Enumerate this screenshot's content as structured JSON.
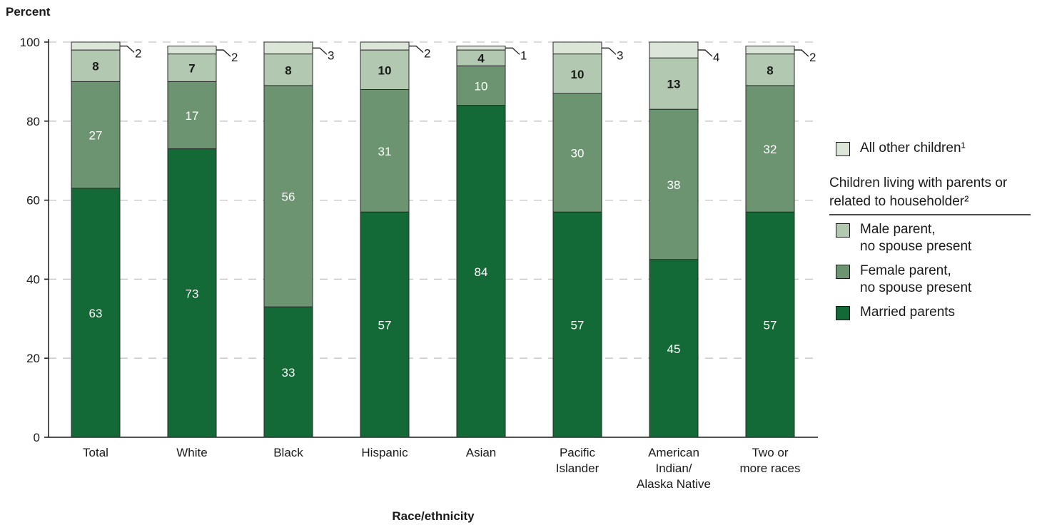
{
  "chart_data": {
    "type": "bar",
    "stacked": true,
    "ylabel": "Percent",
    "xlabel": "Race/ethnicity",
    "ylim": [
      0,
      100
    ],
    "yticks": [
      0,
      20,
      40,
      60,
      80,
      100
    ],
    "grid": true,
    "categories": [
      [
        "Total"
      ],
      [
        "White"
      ],
      [
        "Black"
      ],
      [
        "Hispanic"
      ],
      [
        "Asian"
      ],
      [
        "Pacific",
        "Islander"
      ],
      [
        "American",
        "Indian/",
        "Alaska Native"
      ],
      [
        "Two or",
        "more races"
      ]
    ],
    "series": [
      {
        "name": "Married parents",
        "color": "#136a36",
        "label_color": "#ffffff",
        "values": [
          63,
          73,
          33,
          57,
          84,
          57,
          45,
          57
        ]
      },
      {
        "name": "Female parent,\nno spouse present",
        "color": "#6c9470",
        "label_color": "#ffffff",
        "values": [
          27,
          17,
          56,
          31,
          10,
          30,
          38,
          32
        ]
      },
      {
        "name": "Male parent,\nno spouse present",
        "color": "#b3c8b1",
        "label_color": "#1a1a1a",
        "values": [
          8,
          7,
          8,
          10,
          4,
          10,
          13,
          8
        ]
      },
      {
        "name": "All other children¹",
        "color": "#dbe6d9",
        "label_color": "#1a1a1a",
        "values": [
          2,
          2,
          3,
          2,
          1,
          3,
          4,
          2
        ]
      }
    ],
    "legend_position": "right"
  },
  "legend": {
    "all_other": "All other children¹",
    "group_heading": "Children living with parents or related to householder²",
    "male": "Male parent,\nno spouse present",
    "female": "Female parent,\nno spouse present",
    "married": "Married parents"
  }
}
